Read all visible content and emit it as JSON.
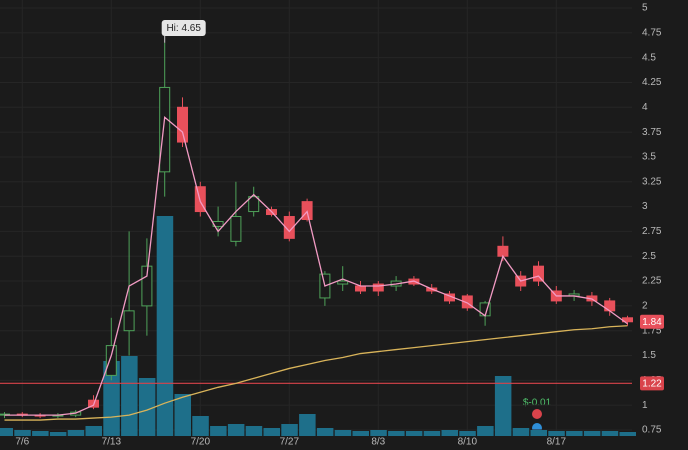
{
  "chart_data": {
    "type": "candlestick",
    "categories": [
      null,
      "7/6",
      null,
      null,
      null,
      null,
      "7/13",
      null,
      null,
      null,
      null,
      "7/20",
      null,
      null,
      null,
      null,
      "7/27",
      null,
      null,
      null,
      null,
      "8/3",
      null,
      null,
      null,
      null,
      "8/10",
      null,
      null,
      null,
      null,
      "8/17",
      null,
      null,
      null,
      null
    ],
    "open": [
      0.9,
      0.91,
      0.9,
      0.89,
      0.9,
      1.05,
      1.3,
      1.75,
      2.0,
      3.35,
      4.0,
      3.2,
      2.8,
      2.65,
      2.95,
      2.97,
      2.9,
      3.05,
      2.08,
      2.22,
      2.2,
      2.22,
      2.2,
      2.27,
      2.18,
      2.12,
      2.1,
      1.9,
      2.6,
      2.3,
      2.4,
      2.15,
      2.1,
      2.1,
      2.05,
      1.88
    ],
    "high": [
      0.93,
      0.93,
      0.92,
      0.92,
      0.95,
      1.1,
      1.88,
      2.75,
      2.68,
      4.65,
      4.1,
      3.25,
      3.0,
      3.25,
      3.2,
      3.0,
      2.95,
      3.08,
      2.35,
      2.4,
      2.25,
      2.25,
      2.3,
      2.3,
      2.22,
      2.15,
      2.12,
      2.05,
      2.7,
      2.35,
      2.45,
      2.2,
      2.16,
      2.14,
      2.08,
      1.9
    ],
    "low": [
      0.87,
      0.88,
      0.87,
      0.87,
      0.88,
      0.96,
      1.25,
      1.5,
      1.7,
      3.1,
      3.6,
      2.9,
      2.7,
      2.6,
      2.9,
      2.9,
      2.65,
      2.85,
      2.0,
      2.15,
      2.12,
      2.1,
      2.15,
      2.2,
      2.12,
      2.02,
      1.95,
      1.8,
      2.45,
      2.15,
      2.2,
      2.02,
      2.05,
      2.0,
      1.9,
      1.8
    ],
    "close": [
      0.91,
      0.9,
      0.89,
      0.9,
      0.93,
      0.98,
      1.6,
      1.95,
      2.4,
      4.2,
      3.65,
      2.95,
      2.85,
      2.9,
      3.1,
      2.92,
      2.68,
      2.87,
      2.32,
      2.25,
      2.15,
      2.15,
      2.25,
      2.22,
      2.15,
      2.05,
      1.98,
      2.03,
      2.5,
      2.2,
      2.25,
      2.05,
      2.12,
      2.05,
      1.95,
      1.84
    ],
    "up_color": "#4fa35a",
    "down_color": "#e8505b",
    "volume": [
      8,
      6,
      5,
      4,
      6,
      10,
      75,
      80,
      58,
      220,
      42,
      20,
      10,
      12,
      10,
      8,
      12,
      22,
      8,
      6,
      5,
      6,
      5,
      5,
      5,
      6,
      5,
      10,
      60,
      8,
      6,
      5,
      5,
      5,
      5,
      4
    ],
    "volume_color": "#1e6f8a",
    "short_ma": {
      "color": "#f29bc4",
      "values": [
        0.9,
        0.9,
        0.9,
        0.9,
        0.92,
        1.0,
        1.5,
        2.2,
        2.3,
        3.9,
        3.75,
        3.05,
        2.75,
        2.95,
        3.12,
        2.95,
        2.75,
        2.95,
        2.2,
        2.27,
        2.2,
        2.2,
        2.22,
        2.25,
        2.17,
        2.1,
        2.03,
        1.9,
        2.5,
        2.25,
        2.3,
        2.1,
        2.1,
        2.07,
        1.95,
        1.82
      ]
    },
    "long_ma": {
      "color": "#d9b45a",
      "values": [
        0.85,
        0.85,
        0.85,
        0.86,
        0.86,
        0.87,
        0.88,
        0.9,
        0.95,
        1.02,
        1.08,
        1.13,
        1.18,
        1.22,
        1.27,
        1.32,
        1.37,
        1.41,
        1.45,
        1.48,
        1.52,
        1.54,
        1.56,
        1.58,
        1.6,
        1.62,
        1.64,
        1.66,
        1.68,
        1.7,
        1.72,
        1.74,
        1.76,
        1.77,
        1.79,
        1.8
      ]
    },
    "level_line": {
      "value": 1.22,
      "color": "#d9434b"
    },
    "last_price": 1.84,
    "high_marker": {
      "value": 4.65,
      "label": "Hi: 4.65"
    },
    "dividend_label": "$-0.01",
    "ylim": [
      0.75,
      5
    ],
    "yticks": [
      0.75,
      1,
      1.25,
      1.5,
      1.75,
      2,
      2.25,
      2.5,
      2.75,
      3,
      3.25,
      3.5,
      3.75,
      4,
      4.25,
      4.5,
      4.75,
      5
    ],
    "grid": true
  }
}
